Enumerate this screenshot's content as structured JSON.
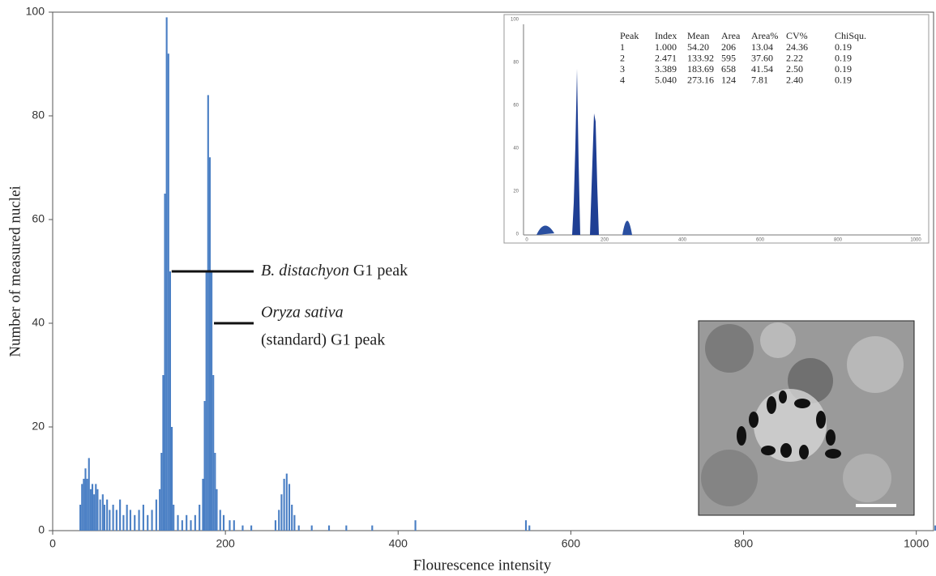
{
  "chart_data": {
    "type": "bar",
    "x_label": "Flourescence intensity",
    "y_label": "Number of measured nuclei",
    "x": [
      32,
      34,
      36,
      38,
      40,
      42,
      44,
      46,
      48,
      50,
      52,
      55,
      58,
      60,
      63,
      66,
      70,
      74,
      78,
      82,
      86,
      90,
      95,
      100,
      105,
      110,
      115,
      120,
      124,
      126,
      128,
      130,
      132,
      134,
      136,
      138,
      140,
      145,
      150,
      155,
      160,
      165,
      170,
      174,
      176,
      178,
      180,
      182,
      184,
      186,
      188,
      190,
      194,
      198,
      205,
      210,
      220,
      230,
      258,
      262,
      265,
      268,
      271,
      274,
      277,
      280,
      285,
      300,
      320,
      340,
      370,
      420,
      548,
      552,
      1022
    ],
    "values": [
      5,
      9,
      10,
      12,
      10,
      14,
      8,
      9,
      7,
      9,
      8,
      6,
      7,
      5,
      6,
      4,
      5,
      4,
      6,
      3,
      5,
      4,
      3,
      4,
      5,
      3,
      4,
      6,
      8,
      15,
      30,
      65,
      99,
      92,
      50,
      20,
      5,
      3,
      2,
      3,
      2,
      3,
      5,
      10,
      25,
      50,
      84,
      72,
      50,
      30,
      15,
      8,
      4,
      3,
      2,
      2,
      1,
      1,
      2,
      4,
      7,
      10,
      11,
      9,
      5,
      3,
      1,
      1,
      1,
      1,
      1,
      2,
      2,
      1,
      1
    ],
    "color": "#4a7fc4",
    "xlim": [
      0,
      1020
    ],
    "xticks": [
      0,
      200,
      400,
      600,
      800,
      1000
    ],
    "ylim": [
      0,
      100
    ],
    "yticks": [
      0,
      20,
      40,
      60,
      80,
      100
    ],
    "annotations": [
      {
        "italic": "B. distachyon",
        "text": " G1 peak",
        "x": 134,
        "y": 50
      },
      {
        "italic": "Oryza sativa",
        "text": "(standard) G1 peak",
        "x": 183,
        "y": 40
      }
    ]
  },
  "inset_table": {
    "header": [
      "Peak",
      "Index",
      "Mean",
      "Area",
      "Area%",
      "CV%",
      "ChiSqu."
    ],
    "rows": [
      [
        "1",
        "1.000",
        "54.20",
        "206",
        "13.04",
        "24.36",
        "0.19"
      ],
      [
        "2",
        "2.471",
        "133.92",
        "595",
        "37.60",
        "2.22",
        "0.19"
      ],
      [
        "3",
        "3.389",
        "183.69",
        "658",
        "41.54",
        "2.50",
        "0.19"
      ],
      [
        "4",
        "5.040",
        "273.16",
        "124",
        "7.81",
        "2.40",
        "0.19"
      ]
    ]
  },
  "inset_axis": {
    "yticks": [
      "100",
      "80",
      "60",
      "40",
      "20",
      "0"
    ],
    "xticks": [
      "0",
      "200",
      "400",
      "600",
      "800",
      "1000"
    ]
  }
}
